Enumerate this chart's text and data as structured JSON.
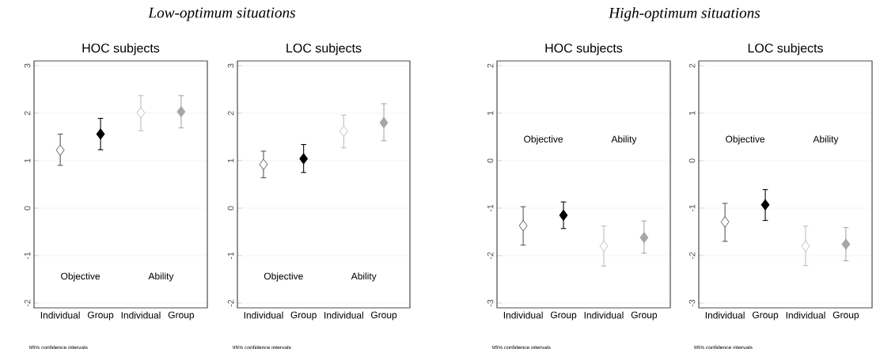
{
  "chart_data": [
    {
      "type": "scatter",
      "subtitle": "*Low-optimum situations*",
      "title": "HOC subjects",
      "categories": [
        "Individual",
        "Group",
        "Individual",
        "Group"
      ],
      "values": [
        1.22,
        1.56,
        2.01,
        2.03
      ],
      "errors": [
        [
          0.9,
          1.56
        ],
        [
          1.23,
          1.89
        ],
        [
          1.63,
          2.37
        ],
        [
          1.69,
          2.37
        ]
      ],
      "colors": [
        "#555555",
        "#000000",
        "#bbbbbb",
        "#a6a6a6"
      ],
      "marker": "diamond",
      "grid": "y",
      "ylim": [
        -2.1,
        3.1
      ],
      "yticks": [
        -2,
        -1,
        0,
        1,
        2,
        3
      ],
      "annotations": [
        "Objective",
        "Ability",
        "95% confidence intervals"
      ]
    },
    {
      "type": "scatter",
      "title": "LOC subjects",
      "categories": [
        "Individual",
        "Group",
        "Individual",
        "Group"
      ],
      "values": [
        0.92,
        1.04,
        1.62,
        1.8
      ],
      "errors": [
        [
          0.64,
          1.2
        ],
        [
          0.75,
          1.34
        ],
        [
          1.27,
          1.96
        ],
        [
          1.42,
          2.2
        ]
      ],
      "colors": [
        "#555555",
        "#000000",
        "#bbbbbb",
        "#a6a6a6"
      ],
      "marker": "diamond",
      "grid": "y",
      "ylim": [
        -2.1,
        3.1
      ],
      "yticks": [
        -2,
        -1,
        0,
        1,
        2,
        3
      ],
      "annotations": [
        "Objective",
        "Ability",
        "95% confidence intervals"
      ]
    },
    {
      "type": "scatter",
      "subtitle": "*High-optimum situations*",
      "title": "HOC subjects",
      "categories": [
        "Individual",
        "Group",
        "Individual",
        "Group"
      ],
      "values": [
        -1.37,
        -1.15,
        -1.8,
        -1.62
      ],
      "errors": [
        [
          -1.78,
          -0.97
        ],
        [
          -1.43,
          -0.87
        ],
        [
          -2.22,
          -1.38
        ],
        [
          -1.95,
          -1.27
        ]
      ],
      "colors": [
        "#555555",
        "#000000",
        "#bbbbbb",
        "#a6a6a6"
      ],
      "marker": "diamond",
      "grid": "y",
      "ylim": [
        -3.1,
        2.1
      ],
      "yticks": [
        -3,
        -2,
        -1,
        0,
        1,
        2
      ],
      "annotations": [
        "Objective",
        "Ability",
        "95% confidence intervals"
      ]
    },
    {
      "type": "scatter",
      "title": "LOC subjects",
      "categories": [
        "Individual",
        "Group",
        "Individual",
        "Group"
      ],
      "values": [
        -1.29,
        -0.93,
        -1.8,
        -1.76
      ],
      "errors": [
        [
          -1.7,
          -0.9
        ],
        [
          -1.26,
          -0.61
        ],
        [
          -2.21,
          -1.38
        ],
        [
          -2.11,
          -1.41
        ]
      ],
      "colors": [
        "#555555",
        "#000000",
        "#bbbbbb",
        "#a6a6a6"
      ],
      "marker": "diamond",
      "grid": "y",
      "ylim": [
        -3.1,
        2.1
      ],
      "yticks": [
        -3,
        -2,
        -1,
        0,
        1,
        2
      ],
      "annotations": [
        "Objective",
        "Ability",
        "95% confidence intervals"
      ]
    }
  ]
}
